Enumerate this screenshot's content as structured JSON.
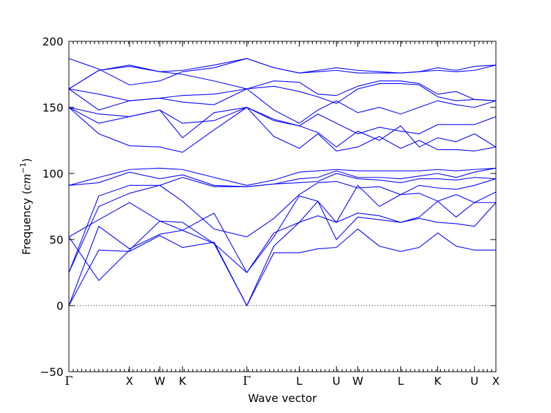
{
  "chart_data": {
    "type": "line",
    "xlabel": "Wave vector",
    "ylabel_prefix": "Frequency (",
    "ylabel_unit_base": "cm",
    "ylabel_unit_exp": "−1",
    "ylabel_suffix": ")",
    "ylim": [
      -50,
      200
    ],
    "y_ticks": [
      -50,
      0,
      50,
      100,
      150,
      200
    ],
    "y_tick_labels": [
      "−50",
      "0",
      "50",
      "100",
      "150",
      "200"
    ],
    "x_range": [
      0,
      1
    ],
    "kpoints": [
      {
        "label": "Γ",
        "x": 0.0,
        "greek": true
      },
      {
        "label": "X",
        "x": 0.1419
      },
      {
        "label": "W",
        "x": 0.2129
      },
      {
        "label": "K",
        "x": 0.2661
      },
      {
        "label": "Γ",
        "x": 0.4167,
        "greek": true
      },
      {
        "label": "L",
        "x": 0.5395
      },
      {
        "label": "U",
        "x": 0.6264
      },
      {
        "label": "W",
        "x": 0.6766
      },
      {
        "label": "L",
        "x": 0.7769
      },
      {
        "label": "K",
        "x": 0.8638
      },
      {
        "label": "U",
        "x": 0.9498
      },
      {
        "label": "X",
        "x": 1.0
      }
    ],
    "zero_line": 0,
    "series": [
      {
        "x": [
          0,
          0.07,
          0.1419,
          0.2129,
          0.2661,
          0.34,
          0.4167,
          0.48,
          0.5395,
          0.5832,
          0.6264,
          0.6766,
          0.7269,
          0.7769,
          0.8203,
          0.8638,
          0.9068,
          0.9498,
          1.0
        ],
        "y": [
          0,
          42,
          41,
          53,
          44,
          48,
          0,
          40,
          40,
          43,
          44,
          58,
          45,
          41,
          44,
          55,
          45,
          42,
          42
        ]
      },
      {
        "x": [
          0,
          0.07,
          0.1419,
          0.2129,
          0.2661,
          0.34,
          0.4167,
          0.48,
          0.5395,
          0.5832,
          0.6264,
          0.6766,
          0.7269,
          0.7769,
          0.8203,
          0.8638,
          0.9068,
          0.9498,
          1.0
        ],
        "y": [
          0,
          60,
          43,
          54,
          57,
          47,
          0,
          45,
          63,
          68,
          63,
          70,
          68,
          63,
          66,
          63,
          62,
          60,
          78
        ]
      },
      {
        "x": [
          0,
          0.07,
          0.1419,
          0.2129,
          0.2661,
          0.34,
          0.4167,
          0.48,
          0.5395,
          0.5832,
          0.6264,
          0.6766,
          0.7269,
          0.7769,
          0.8203,
          0.8638,
          0.9068,
          0.9498,
          1.0
        ],
        "y": [
          52,
          19,
          42,
          64,
          57,
          70,
          25,
          55,
          63,
          79,
          50,
          67,
          65,
          63,
          67,
          79,
          67,
          78,
          78
        ]
      },
      {
        "x": [
          0,
          0.07,
          0.1419,
          0.2129,
          0.2661,
          0.34,
          0.4167,
          0.48,
          0.5395,
          0.5832,
          0.6264,
          0.6766,
          0.7269,
          0.7769,
          0.8203,
          0.8638,
          0.9068,
          0.9498,
          1.0
        ],
        "y": [
          52,
          65,
          78,
          64,
          63,
          47,
          25,
          52,
          83,
          79,
          63,
          91,
          75,
          84,
          85,
          79,
          84,
          78,
          86
        ]
      },
      {
        "x": [
          0,
          0.07,
          0.1419,
          0.2129,
          0.2661,
          0.34,
          0.4167,
          0.48,
          0.5395,
          0.5832,
          0.6264,
          0.6766,
          0.7269,
          0.7769,
          0.8203,
          0.8638,
          0.9068,
          0.9498,
          1.0
        ],
        "y": [
          25,
          75,
          85,
          91,
          79,
          58,
          52,
          66,
          84,
          93,
          94,
          89,
          90,
          84,
          91,
          89,
          88,
          91,
          96
        ]
      },
      {
        "x": [
          0,
          0.07,
          0.1419,
          0.2129,
          0.2661,
          0.34,
          0.4167,
          0.48,
          0.5395,
          0.5832,
          0.6264,
          0.6766,
          0.7269,
          0.7769,
          0.8203,
          0.8638,
          0.9068,
          0.9498,
          1.0
        ],
        "y": [
          25,
          83,
          91,
          91,
          97,
          90,
          90,
          92,
          93,
          94,
          100,
          96,
          95,
          93,
          96,
          96,
          95,
          97,
          96
        ]
      },
      {
        "x": [
          0,
          0.07,
          0.1419,
          0.2129,
          0.2661,
          0.34,
          0.4167,
          0.48,
          0.5395,
          0.5832,
          0.6264,
          0.6766,
          0.7269,
          0.7769,
          0.8203,
          0.8638,
          0.9068,
          0.9498,
          1.0
        ],
        "y": [
          91,
          93,
          101,
          96,
          99,
          91,
          90,
          92,
          96,
          97,
          102,
          97,
          97,
          96,
          98,
          100,
          97,
          101,
          104
        ]
      },
      {
        "x": [
          0,
          0.07,
          0.1419,
          0.2129,
          0.2661,
          0.34,
          0.4167,
          0.48,
          0.5395,
          0.5832,
          0.6264,
          0.6766,
          0.7269,
          0.7769,
          0.8203,
          0.8638,
          0.9068,
          0.9498,
          1.0
        ],
        "y": [
          91,
          97,
          103,
          104,
          103,
          97,
          91,
          95,
          101,
          102,
          103,
          102,
          102,
          102,
          102,
          103,
          102,
          103,
          104
        ]
      },
      {
        "x": [
          0,
          0.07,
          0.1419,
          0.2129,
          0.2661,
          0.34,
          0.4167,
          0.48,
          0.5395,
          0.5832,
          0.6264,
          0.6766,
          0.7269,
          0.7769,
          0.8203,
          0.8638,
          0.9068,
          0.9498,
          1.0
        ],
        "y": [
          150,
          130,
          121,
          120,
          116,
          133,
          150,
          128,
          119,
          130,
          117,
          120,
          128,
          119,
          125,
          118,
          118,
          117,
          120
        ]
      },
      {
        "x": [
          0,
          0.07,
          0.1419,
          0.2129,
          0.2661,
          0.34,
          0.4167,
          0.48,
          0.5395,
          0.5832,
          0.6264,
          0.6766,
          0.7269,
          0.7769,
          0.8203,
          0.8638,
          0.9068,
          0.9498,
          1.0
        ],
        "y": [
          150,
          138,
          143,
          148,
          127,
          146,
          150,
          140,
          136,
          131,
          120,
          132,
          125,
          136,
          120,
          127,
          124,
          130,
          120
        ]
      },
      {
        "x": [
          0,
          0.07,
          0.1419,
          0.2129,
          0.2661,
          0.34,
          0.4167,
          0.48,
          0.5395,
          0.5832,
          0.6264,
          0.6766,
          0.7269,
          0.7769,
          0.8203,
          0.8638,
          0.9068,
          0.9498,
          1.0
        ],
        "y": [
          150,
          145,
          143,
          148,
          138,
          140,
          150,
          141,
          136,
          145,
          138,
          130,
          135,
          132,
          130,
          137,
          137,
          137,
          143
        ]
      },
      {
        "x": [
          0,
          0.07,
          0.1419,
          0.2129,
          0.2661,
          0.34,
          0.4167,
          0.48,
          0.5395,
          0.5832,
          0.6264,
          0.6766,
          0.7269,
          0.7769,
          0.8203,
          0.8638,
          0.9068,
          0.9498,
          1.0
        ],
        "y": [
          164,
          148,
          155,
          157,
          154,
          152,
          164,
          148,
          138,
          148,
          155,
          146,
          150,
          145,
          150,
          155,
          152,
          150,
          155
        ]
      },
      {
        "x": [
          0,
          0.07,
          0.1419,
          0.2129,
          0.2661,
          0.34,
          0.4167,
          0.48,
          0.5395,
          0.5832,
          0.6264,
          0.6766,
          0.7269,
          0.7769,
          0.8203,
          0.8638,
          0.9068,
          0.9498,
          1.0
        ],
        "y": [
          164,
          160,
          155,
          157,
          159,
          160,
          164,
          166,
          162,
          158,
          153,
          164,
          168,
          168,
          167,
          158,
          155,
          156,
          155
        ]
      },
      {
        "x": [
          0,
          0.07,
          0.1419,
          0.2129,
          0.2661,
          0.34,
          0.4167,
          0.48,
          0.5395,
          0.5832,
          0.6264,
          0.6766,
          0.7269,
          0.7769,
          0.8203,
          0.8638,
          0.9068,
          0.9498,
          1.0
        ],
        "y": [
          164,
          178,
          181,
          177,
          175,
          170,
          164,
          170,
          169,
          160,
          159,
          166,
          170,
          170,
          168,
          160,
          162,
          156,
          155
        ]
      },
      {
        "x": [
          0,
          0.07,
          0.1419,
          0.2129,
          0.2661,
          0.34,
          0.4167,
          0.48,
          0.5395,
          0.5832,
          0.6264,
          0.6766,
          0.7269,
          0.7769,
          0.8203,
          0.8638,
          0.9068,
          0.9498,
          1.0
        ],
        "y": [
          164,
          178,
          182,
          177,
          178,
          182,
          187,
          180,
          176,
          177,
          178,
          176,
          176,
          176,
          177,
          178,
          177,
          178,
          182
        ]
      },
      {
        "x": [
          0,
          0.07,
          0.1419,
          0.2129,
          0.2661,
          0.34,
          0.4167,
          0.48,
          0.5395,
          0.5832,
          0.6264,
          0.6766,
          0.7269,
          0.7769,
          0.8203,
          0.8638,
          0.9068,
          0.9498,
          1.0
        ],
        "y": [
          187,
          179,
          167,
          170,
          177,
          180,
          187,
          180,
          176,
          178,
          180,
          178,
          177,
          176,
          177,
          180,
          178,
          181,
          182
        ]
      }
    ]
  }
}
